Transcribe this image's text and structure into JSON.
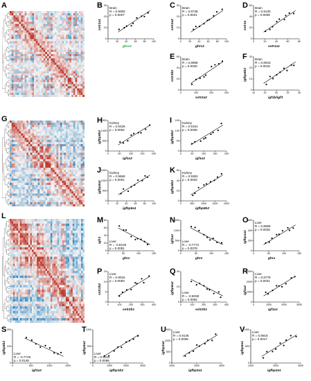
{
  "panels": {
    "A": {
      "letter": "A"
    },
    "G": {
      "letter": "G"
    },
    "L": {
      "letter": "L"
    }
  },
  "scatter_panels": [
    {
      "id": "B",
      "tissue": "Brain",
      "r": "R = 0.9083",
      "p": "p = 0.0007",
      "xlabel": "ghrx1",
      "ylabel": "sstr1a1",
      "xticks": [
        "0",
        "20",
        "40",
        "60",
        "80",
        "100"
      ],
      "yticks": [
        "0",
        "10",
        "20",
        "30"
      ],
      "xlabel_color": "#1a9e3e"
    },
    {
      "id": "C",
      "tissue": "Brain",
      "r": "R = 0.8738",
      "p": "p = 0.0021",
      "xlabel": "ghrx1",
      "ylabel": "sstr2a2",
      "xticks": [
        "0",
        "20",
        "40",
        "60",
        "80",
        "100"
      ],
      "yticks": [
        "0",
        "10",
        "20",
        "30"
      ]
    },
    {
      "id": "D",
      "tissue": "Brain",
      "r": "R = 0.9130",
      "p": "p = 0.0006",
      "xlabel": "sstr1a1",
      "ylabel": "sstr3a",
      "xticks": [
        "0",
        "20",
        "40",
        "60",
        "80"
      ],
      "yticks": [
        "0",
        "20",
        "40",
        "60"
      ]
    },
    {
      "id": "E",
      "tissue": "Brain",
      "r": "R = 0.8658",
      "p": "p = 0.0026",
      "xlabel": "sstr2a2",
      "ylabel": "sstr3b2",
      "xticks": [
        "0",
        "100",
        "200",
        "300"
      ],
      "yticks": [
        "0",
        "20",
        "40",
        "60"
      ]
    },
    {
      "id": "F",
      "tissue": "Brain",
      "r": "R = 0.8943",
      "p": "p = 0.0015",
      "xlabel": "igf1b/igf3",
      "ylabel": "igfbp5b2",
      "xticks": [
        "10",
        "15",
        "20",
        "25",
        "30"
      ],
      "yticks": [
        "0",
        "10",
        "20",
        "30"
      ]
    },
    {
      "id": "H",
      "tissue": "Kidney",
      "r": "R = 0.8426",
      "p": "p = 0.0062",
      "xlabel": "igf1a2",
      "ylabel": "igfbp5b2",
      "xticks": [
        "0",
        "50",
        "100",
        "150",
        "200"
      ],
      "yticks": [
        "0",
        "500",
        "1000",
        "1500"
      ]
    },
    {
      "id": "I",
      "tissue": "Kidney",
      "r": "R = 0.9161",
      "p": "p = 0.0005",
      "xlabel": "igf1a2",
      "ylabel": "igfbp5b2",
      "xticks": [
        "0",
        "50",
        "100",
        "150",
        "200"
      ],
      "yticks": [
        "0",
        "50",
        "100",
        "150"
      ]
    },
    {
      "id": "J",
      "tissue": "Kidney",
      "r": "R = 0.9569",
      "p": "p = 0.0001",
      "xlabel": "igfbp5a1",
      "ylabel": "igfbp5a2",
      "xticks": [
        "0",
        "20",
        "40",
        "60",
        "80",
        "100"
      ],
      "yticks": [
        "0",
        "500",
        "1000",
        "1500"
      ]
    },
    {
      "id": "K",
      "tissue": "Kidney",
      "r": "R = 0.9363",
      "p": "p = 0.0002",
      "xlabel": "igfbp5b2",
      "ylabel": "igfbp6b2",
      "xticks": [
        "0",
        "500",
        "1000",
        "1500",
        "2000"
      ],
      "yticks": [
        "0",
        "20",
        "40",
        "60"
      ]
    },
    {
      "id": "M",
      "tissue": "Liver",
      "r": "R = -0.8105",
      "p": "p = 0.0081",
      "xlabel": "ghrx",
      "ylabel": "igfr1",
      "xticks": [
        "0",
        "50",
        "100",
        "150"
      ],
      "yticks": [
        "0",
        "20",
        "40",
        "60",
        "80"
      ]
    },
    {
      "id": "N",
      "tissue": "Liver",
      "r": "R = -0.7772",
      "p": "p = 0.0078",
      "xlabel": "ghrx",
      "ylabel": "igf1a2",
      "xticks": [
        "0",
        "50",
        "100",
        "150"
      ],
      "yticks": [
        "0",
        "500",
        "1000",
        "1500"
      ]
    },
    {
      "id": "O",
      "tissue": "Liver",
      "r": "R = 0.8665",
      "p": "p = 0.0025",
      "xlabel": "ghrx",
      "ylabel": "igfbp1a2",
      "xticks": [
        "0",
        "50",
        "100",
        "150"
      ],
      "yticks": [
        "0",
        "200",
        "400",
        "600"
      ]
    },
    {
      "id": "P",
      "tissue": "Liver",
      "r": "R = 0.9016",
      "p": "p = 0.0093",
      "xlabel": "sstr2b1",
      "ylabel": "sstr3b2",
      "xticks": [
        "0",
        "100",
        "200",
        "300",
        "400"
      ],
      "yticks": [
        "0",
        "5",
        "10",
        "15"
      ]
    },
    {
      "id": "Q",
      "tissue": "Liver",
      "r": "R = -0.8038",
      "p": "p = 0.0092",
      "xlabel": "sstr2b1",
      "ylabel": "igfbp6a2",
      "xticks": [
        "0",
        "100",
        "200",
        "300",
        "400"
      ],
      "yticks": [
        "0",
        "20",
        "40"
      ]
    },
    {
      "id": "R",
      "tissue": "Liver",
      "r": "R = 0.8779",
      "p": "p = 0.0031",
      "xlabel": "igf1a1",
      "ylabel": "igf1a2",
      "xticks": [
        "0",
        "1000",
        "2000",
        "3000"
      ],
      "yticks": [
        "0",
        "1000",
        "2000",
        "3000"
      ]
    },
    {
      "id": "S",
      "tissue": "Liver",
      "r": "R = -0.7719",
      "p": "p = 0.0148",
      "xlabel": "igf1a2",
      "ylabel": "igfbp5b2",
      "xticks": [
        "0",
        "500",
        "1000",
        "1500"
      ],
      "yticks": [
        "0",
        "100",
        "200"
      ]
    },
    {
      "id": "T",
      "tissue": "Liver",
      "r": "R = 0.8211",
      "p": "p = 0.0066",
      "xlabel": "igfbp1b2",
      "ylabel": "igfbp6a2",
      "xticks": [
        "0",
        "1000",
        "2000",
        "3000"
      ],
      "yticks": [
        "0",
        "500",
        "1000"
      ]
    },
    {
      "id": "U",
      "tissue": "Liver",
      "r": "R = 0.9145",
      "p": "p = 0.0006",
      "xlabel": "igfbp2a1",
      "ylabel": "igfbp2a2",
      "xticks": [
        "1000",
        "2000",
        "3000"
      ],
      "yticks": [
        "0",
        "500",
        "1000",
        "1500"
      ]
    },
    {
      "id": "V",
      "tissue": "Liver",
      "r": "R = 0.8816",
      "p": "p = 0.0017",
      "xlabel": "igfbp2a1",
      "ylabel": "igfbp6a1",
      "xticks": [
        "1000",
        "2000",
        "3000"
      ],
      "yticks": [
        "0",
        "500",
        "1000"
      ]
    }
  ],
  "colors": {
    "heat_red": "#c0392b",
    "heat_blue": "#2e86c1",
    "heat_white": "#f5f5f5",
    "line": "#000000",
    "point": "#000000"
  }
}
